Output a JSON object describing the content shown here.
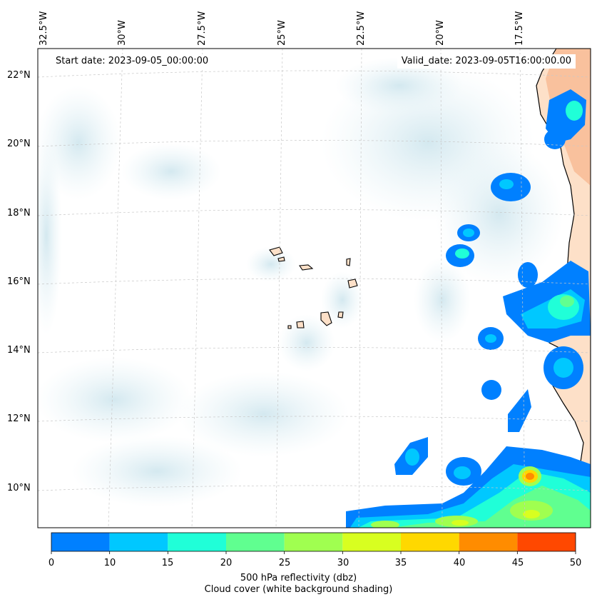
{
  "map": {
    "start_date": "Start date: 2023-09-05_00:00:00",
    "valid_date": "Valid_date: 2023-09-05T16:00:00.00",
    "lon_labels": [
      "32.5°W",
      "30°W",
      "27.5°W",
      "25°W",
      "22.5°W",
      "20°W",
      "17.5°W"
    ],
    "lat_labels": [
      "22°N",
      "20°N",
      "18°N",
      "16°N",
      "14°N",
      "12°N",
      "10°N"
    ]
  },
  "colorbar": {
    "ticks": [
      "0",
      "10",
      "15",
      "20",
      "25",
      "30",
      "35",
      "40",
      "45",
      "50"
    ],
    "colors": [
      "#0080ff",
      "#00c8ff",
      "#20ffd8",
      "#60ff90",
      "#a0ff50",
      "#d8ff20",
      "#ffd800",
      "#ff8c00",
      "#ff4800"
    ],
    "label_line1": "500 hPa reflectivity (dbz)",
    "label_line2": "Cloud cover (white background shading)"
  },
  "colors": {
    "land": "#fde0c8",
    "land_dark": "#f7b48a",
    "cloud": "#d8ecf2",
    "coast": "#000000",
    "grid": "#c8c8c8"
  }
}
